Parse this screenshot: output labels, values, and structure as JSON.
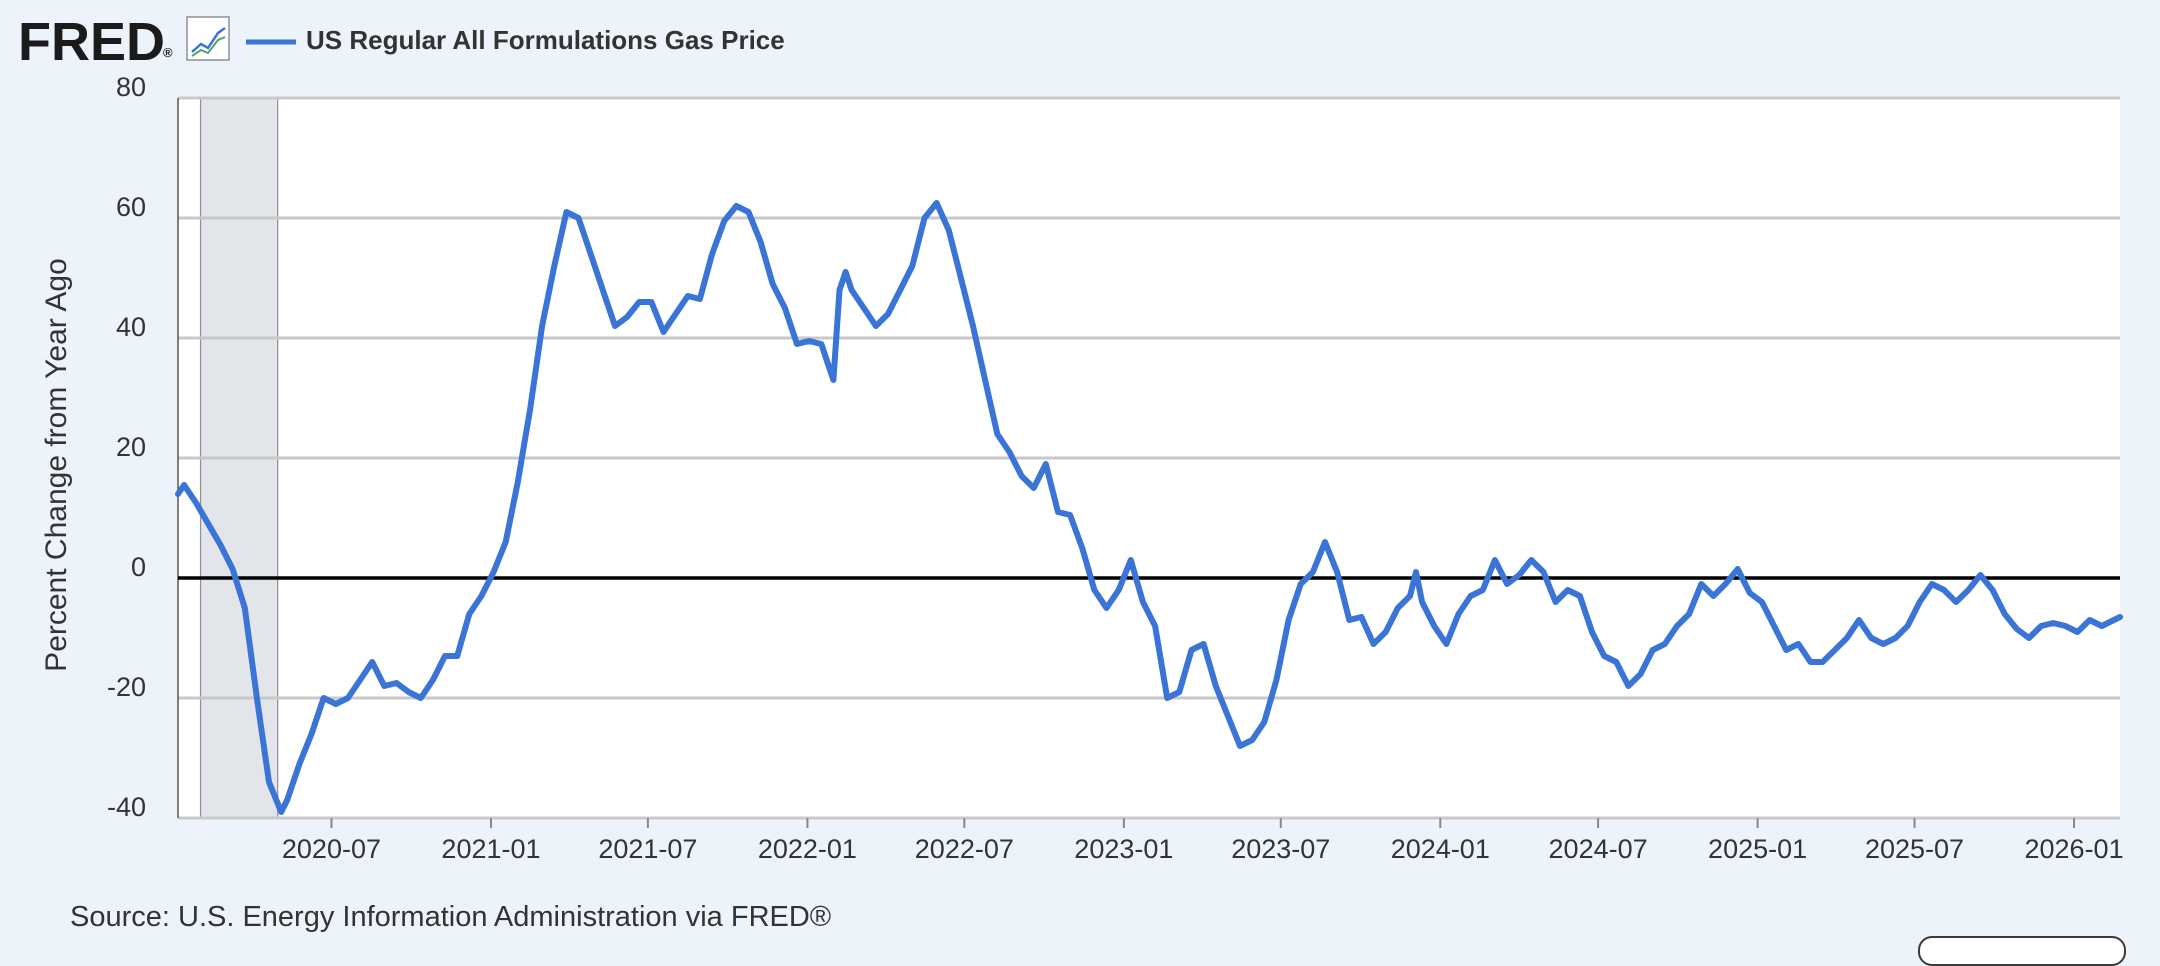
{
  "header": {
    "logo_text": "FRED",
    "logo_mark": "®",
    "graph_icon": "line-chart-icon",
    "legend_label": "US Regular All Formulations Gas Price"
  },
  "source_note": "Source: U.S. Energy Information Administration via FRED®",
  "colors": {
    "background": "#edf3fb",
    "plot_background": "#ffffff",
    "series": "#3a74d6",
    "gridline": "#c9c9c9",
    "zero_line": "#000000",
    "recession_shading": "#e2e5ea",
    "logo": "#1b1b1b"
  },
  "chart_data": {
    "type": "line",
    "title": "",
    "xlabel": "",
    "ylabel": "Percent Change from Year Ago",
    "ylim": [
      -40,
      80
    ],
    "yticks": [
      -40,
      -20,
      0,
      20,
      40,
      60,
      80
    ],
    "ytick_labels": [
      "-40",
      "-20",
      "0",
      "20",
      "40",
      "60",
      "80"
    ],
    "xlim": [
      "2020-01-06",
      "2026-02-23"
    ],
    "xticks": [
      "2020-07-01",
      "2021-01-01",
      "2021-07-01",
      "2022-01-01",
      "2022-07-01",
      "2023-01-01",
      "2023-07-01",
      "2024-01-01",
      "2024-07-01",
      "2025-01-01",
      "2025-07-01",
      "2026-01-01"
    ],
    "xtick_labels": [
      "2020-07",
      "2021-01",
      "2021-07",
      "2022-01",
      "2022-07",
      "2023-01",
      "2023-07",
      "2024-01",
      "2024-07",
      "2025-01",
      "2025-07",
      "2026-01"
    ],
    "grid": true,
    "legend_placement": "top-left",
    "recession": {
      "start": "2020-02-01",
      "end": "2020-04-30"
    },
    "series": [
      {
        "name": "US Regular All Formulations Gas Price",
        "points": [
          [
            "2020-01-06",
            14.0
          ],
          [
            "2020-01-13",
            15.5
          ],
          [
            "2020-01-27",
            12.5
          ],
          [
            "2020-02-10",
            9.0
          ],
          [
            "2020-02-24",
            5.5
          ],
          [
            "2020-03-09",
            1.5
          ],
          [
            "2020-03-23",
            -5.0
          ],
          [
            "2020-04-06",
            -20.0
          ],
          [
            "2020-04-20",
            -34.0
          ],
          [
            "2020-05-04",
            -39.0
          ],
          [
            "2020-05-11",
            -37.0
          ],
          [
            "2020-05-25",
            -31.0
          ],
          [
            "2020-06-08",
            -26.0
          ],
          [
            "2020-06-22",
            -20.0
          ],
          [
            "2020-07-06",
            -21.0
          ],
          [
            "2020-07-20",
            -20.0
          ],
          [
            "2020-08-03",
            -17.0
          ],
          [
            "2020-08-17",
            -14.0
          ],
          [
            "2020-08-31",
            -18.0
          ],
          [
            "2020-09-14",
            -17.5
          ],
          [
            "2020-09-28",
            -19.0
          ],
          [
            "2020-10-12",
            -20.0
          ],
          [
            "2020-10-26",
            -17.0
          ],
          [
            "2020-11-09",
            -13.0
          ],
          [
            "2020-11-23",
            -13.0
          ],
          [
            "2020-12-07",
            -6.0
          ],
          [
            "2020-12-21",
            -3.0
          ],
          [
            "2021-01-04",
            1.0
          ],
          [
            "2021-01-18",
            6.0
          ],
          [
            "2021-02-01",
            16.0
          ],
          [
            "2021-02-15",
            28.0
          ],
          [
            "2021-03-01",
            42.0
          ],
          [
            "2021-03-15",
            52.0
          ],
          [
            "2021-03-29",
            61.0
          ],
          [
            "2021-04-12",
            60.0
          ],
          [
            "2021-04-26",
            54.0
          ],
          [
            "2021-05-10",
            48.0
          ],
          [
            "2021-05-24",
            42.0
          ],
          [
            "2021-06-07",
            43.5
          ],
          [
            "2021-06-21",
            46.0
          ],
          [
            "2021-07-05",
            46.0
          ],
          [
            "2021-07-19",
            41.0
          ],
          [
            "2021-08-02",
            44.0
          ],
          [
            "2021-08-16",
            47.0
          ],
          [
            "2021-08-30",
            46.5
          ],
          [
            "2021-09-13",
            54.0
          ],
          [
            "2021-09-27",
            59.5
          ],
          [
            "2021-10-11",
            62.0
          ],
          [
            "2021-10-25",
            61.0
          ],
          [
            "2021-11-08",
            56.0
          ],
          [
            "2021-11-22",
            49.0
          ],
          [
            "2021-12-06",
            45.0
          ],
          [
            "2021-12-20",
            39.0
          ],
          [
            "2022-01-03",
            39.5
          ],
          [
            "2022-01-17",
            39.0
          ],
          [
            "2022-01-31",
            33.0
          ],
          [
            "2022-02-07",
            48.0
          ],
          [
            "2022-02-14",
            51.0
          ],
          [
            "2022-02-21",
            48.0
          ],
          [
            "2022-03-07",
            45.0
          ],
          [
            "2022-03-21",
            42.0
          ],
          [
            "2022-04-04",
            44.0
          ],
          [
            "2022-04-18",
            48.0
          ],
          [
            "2022-05-02",
            52.0
          ],
          [
            "2022-05-16",
            60.0
          ],
          [
            "2022-05-30",
            62.5
          ],
          [
            "2022-06-13",
            58.0
          ],
          [
            "2022-06-27",
            50.0
          ],
          [
            "2022-07-11",
            42.0
          ],
          [
            "2022-07-25",
            33.0
          ],
          [
            "2022-08-08",
            24.0
          ],
          [
            "2022-08-22",
            21.0
          ],
          [
            "2022-09-05",
            17.0
          ],
          [
            "2022-09-19",
            15.0
          ],
          [
            "2022-10-03",
            19.0
          ],
          [
            "2022-10-17",
            11.0
          ],
          [
            "2022-10-31",
            10.5
          ],
          [
            "2022-11-14",
            5.0
          ],
          [
            "2022-11-28",
            -2.0
          ],
          [
            "2022-12-12",
            -5.0
          ],
          [
            "2022-12-26",
            -2.0
          ],
          [
            "2023-01-09",
            3.0
          ],
          [
            "2023-01-23",
            -4.0
          ],
          [
            "2023-02-06",
            -8.0
          ],
          [
            "2023-02-20",
            -20.0
          ],
          [
            "2023-03-06",
            -19.0
          ],
          [
            "2023-03-20",
            -12.0
          ],
          [
            "2023-04-03",
            -11.0
          ],
          [
            "2023-04-17",
            -18.0
          ],
          [
            "2023-05-01",
            -23.0
          ],
          [
            "2023-05-15",
            -28.0
          ],
          [
            "2023-05-29",
            -27.0
          ],
          [
            "2023-06-12",
            -24.0
          ],
          [
            "2023-06-26",
            -17.0
          ],
          [
            "2023-07-10",
            -7.0
          ],
          [
            "2023-07-24",
            -1.0
          ],
          [
            "2023-08-07",
            1.0
          ],
          [
            "2023-08-21",
            6.0
          ],
          [
            "2023-09-04",
            1.0
          ],
          [
            "2023-09-18",
            -7.0
          ],
          [
            "2023-10-02",
            -6.5
          ],
          [
            "2023-10-16",
            -11.0
          ],
          [
            "2023-10-30",
            -9.0
          ],
          [
            "2023-11-13",
            -5.0
          ],
          [
            "2023-11-27",
            -3.0
          ],
          [
            "2023-12-04",
            1.0
          ],
          [
            "2023-12-11",
            -4.0
          ],
          [
            "2023-12-25",
            -8.0
          ],
          [
            "2024-01-08",
            -11.0
          ],
          [
            "2024-01-22",
            -6.0
          ],
          [
            "2024-02-05",
            -3.0
          ],
          [
            "2024-02-19",
            -2.0
          ],
          [
            "2024-03-04",
            3.0
          ],
          [
            "2024-03-18",
            -1.0
          ],
          [
            "2024-04-01",
            0.5
          ],
          [
            "2024-04-15",
            3.0
          ],
          [
            "2024-04-29",
            1.0
          ],
          [
            "2024-05-13",
            -4.0
          ],
          [
            "2024-05-27",
            -2.0
          ],
          [
            "2024-06-10",
            -3.0
          ],
          [
            "2024-06-24",
            -9.0
          ],
          [
            "2024-07-08",
            -13.0
          ],
          [
            "2024-07-22",
            -14.0
          ],
          [
            "2024-08-05",
            -18.0
          ],
          [
            "2024-08-19",
            -16.0
          ],
          [
            "2024-09-02",
            -12.0
          ],
          [
            "2024-09-16",
            -11.0
          ],
          [
            "2024-09-30",
            -8.0
          ],
          [
            "2024-10-14",
            -6.0
          ],
          [
            "2024-10-28",
            -1.0
          ],
          [
            "2024-11-11",
            -3.0
          ],
          [
            "2024-11-25",
            -1.0
          ],
          [
            "2024-12-09",
            1.5
          ],
          [
            "2024-12-23",
            -2.5
          ],
          [
            "2025-01-06",
            -4.0
          ],
          [
            "2025-01-20",
            -8.0
          ],
          [
            "2025-02-03",
            -12.0
          ],
          [
            "2025-02-17",
            -11.0
          ],
          [
            "2025-03-03",
            -14.0
          ],
          [
            "2025-03-17",
            -14.0
          ],
          [
            "2025-03-31",
            -12.0
          ],
          [
            "2025-04-14",
            -10.0
          ],
          [
            "2025-04-28",
            -7.0
          ],
          [
            "2025-05-12",
            -10.0
          ],
          [
            "2025-05-26",
            -11.0
          ],
          [
            "2025-06-09",
            -10.0
          ],
          [
            "2025-06-23",
            -8.0
          ],
          [
            "2025-07-07",
            -4.0
          ],
          [
            "2025-07-21",
            -1.0
          ],
          [
            "2025-08-04",
            -2.0
          ],
          [
            "2025-08-18",
            -4.0
          ],
          [
            "2025-09-01",
            -2.0
          ],
          [
            "2025-09-15",
            0.5
          ],
          [
            "2025-09-29",
            -2.0
          ],
          [
            "2025-10-13",
            -6.0
          ],
          [
            "2025-10-27",
            -8.5
          ],
          [
            "2025-11-10",
            -10.0
          ],
          [
            "2025-11-24",
            -8.0
          ],
          [
            "2025-12-08",
            -7.5
          ],
          [
            "2025-12-22",
            -8.0
          ],
          [
            "2026-01-05",
            -9.0
          ],
          [
            "2026-01-19",
            -7.0
          ],
          [
            "2026-02-02",
            -8.0
          ],
          [
            "2026-02-23",
            -6.5
          ]
        ]
      }
    ]
  }
}
